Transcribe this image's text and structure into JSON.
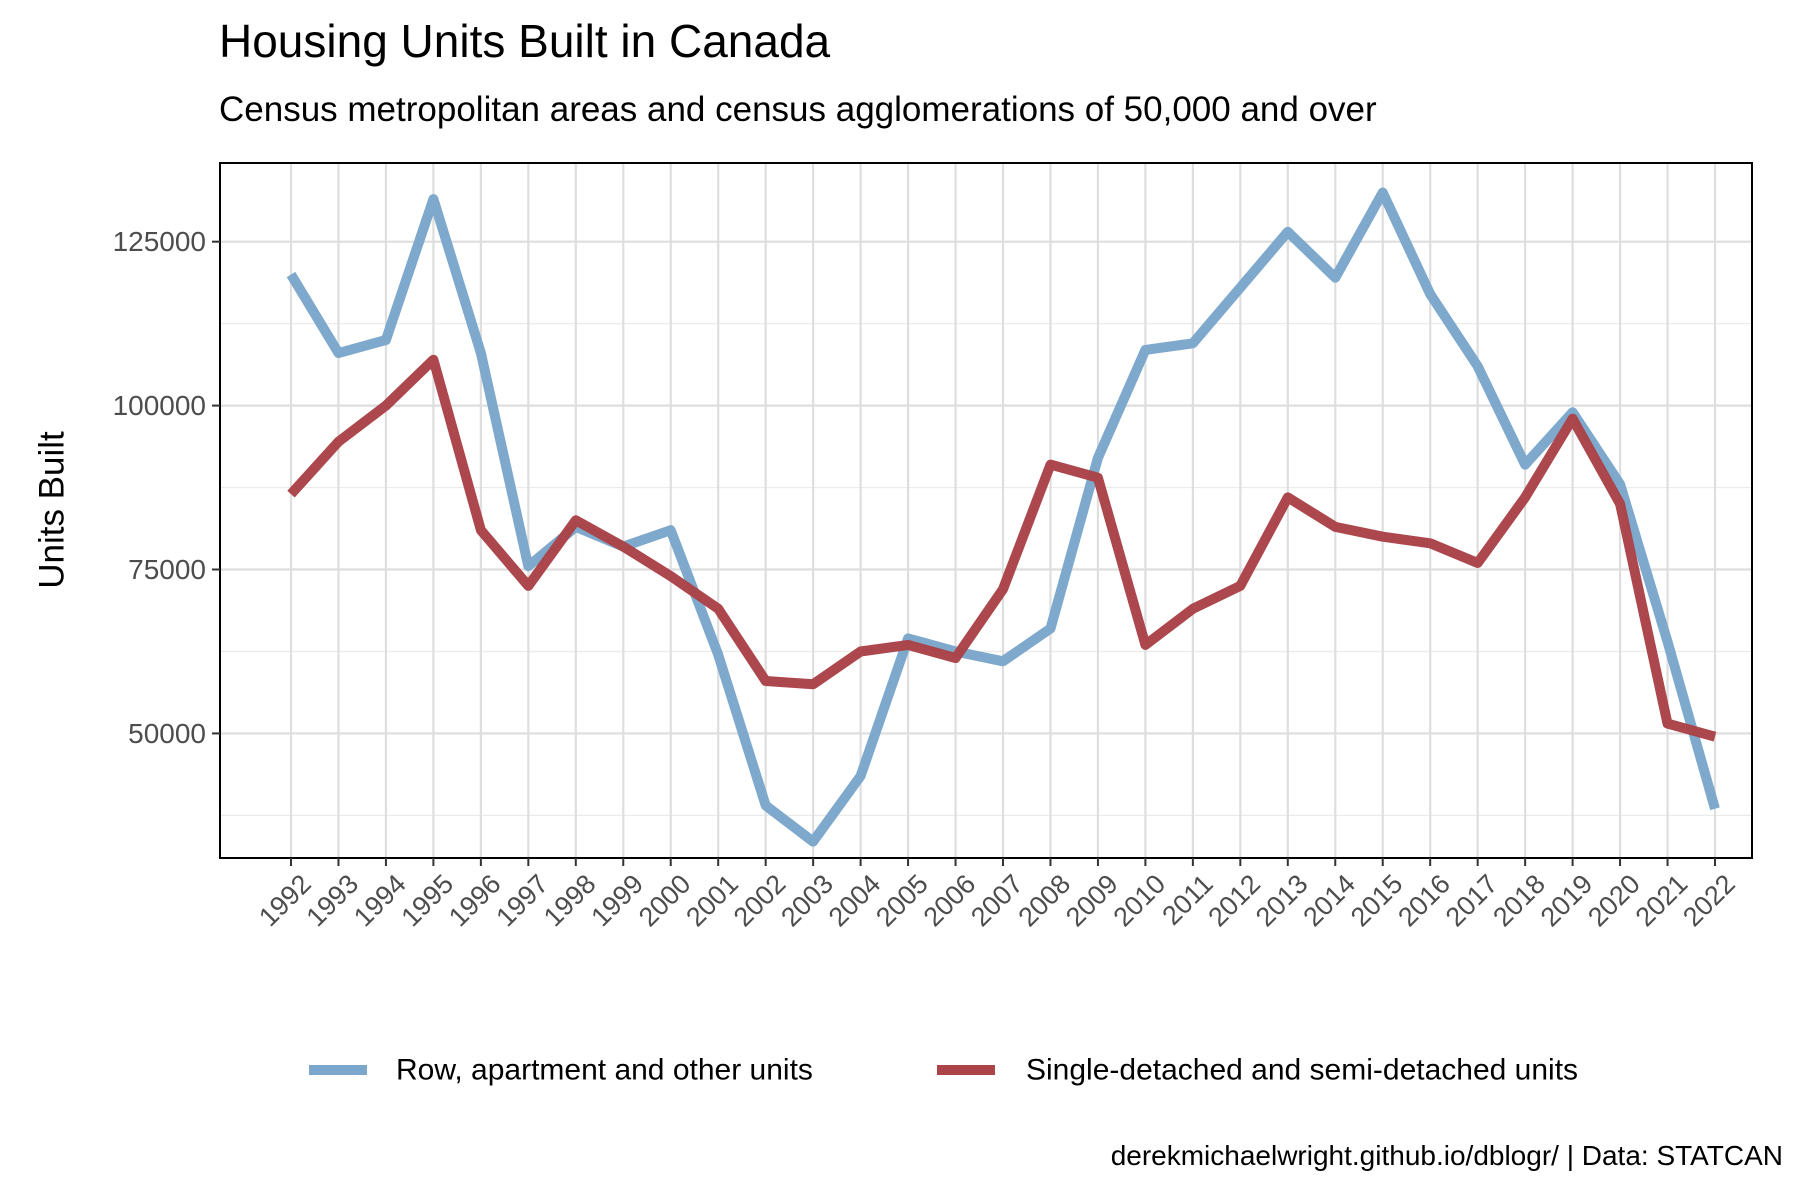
{
  "title": "Housing Units Built in Canada",
  "subtitle": "Census metropolitan areas and census agglomerations of 50,000 and over",
  "caption": "derekmichaelwright.github.io/dblogr/ | Data: STATCAN",
  "chart_data": {
    "type": "line",
    "ylabel": "Units Built",
    "xlabel": "",
    "x": [
      1992,
      1993,
      1994,
      1995,
      1996,
      1997,
      1998,
      1999,
      2000,
      2001,
      2002,
      2003,
      2004,
      2005,
      2006,
      2007,
      2008,
      2009,
      2010,
      2011,
      2012,
      2013,
      2014,
      2015,
      2016,
      2017,
      2018,
      2019,
      2020,
      2021,
      2022
    ],
    "x_tick_labels": [
      "1992",
      "1993",
      "1994",
      "1995",
      "1996",
      "1997",
      "1998",
      "1999",
      "2000",
      "2001",
      "2002",
      "2003",
      "2004",
      "2005",
      "2006",
      "2007",
      "2008",
      "2009",
      "2010",
      "2011",
      "2012",
      "2013",
      "2014",
      "2015",
      "2016",
      "2017",
      "2018",
      "2019",
      "2020",
      "2021",
      "2022"
    ],
    "y_ticks": [
      50000,
      75000,
      100000,
      125000
    ],
    "y_tick_labels": [
      "50000",
      "75000",
      "100000",
      "125000"
    ],
    "ylim": [
      31000,
      137000
    ],
    "grid": true,
    "legend_position": "bottom",
    "series": [
      {
        "name": "Row, apartment and other units",
        "color": "#7ba7cc",
        "values": [
          120000,
          108000,
          110000,
          131500,
          108000,
          75500,
          81500,
          78500,
          81000,
          62000,
          39000,
          33500,
          43500,
          64500,
          62500,
          61000,
          66000,
          92000,
          108500,
          109500,
          118000,
          126500,
          119500,
          132500,
          117000,
          106000,
          91000,
          99000,
          88000,
          64000,
          38500
        ]
      },
      {
        "name": "Single-detached and semi-detached units",
        "color": "#aa4449",
        "values": [
          86500,
          94500,
          100000,
          107000,
          81000,
          72500,
          82500,
          78500,
          74000,
          69000,
          58000,
          57500,
          62500,
          63500,
          61500,
          72000,
          91000,
          89000,
          63500,
          69000,
          72500,
          86000,
          81500,
          80000,
          79000,
          76000,
          86000,
          98000,
          85000,
          51500,
          49500
        ]
      }
    ]
  }
}
